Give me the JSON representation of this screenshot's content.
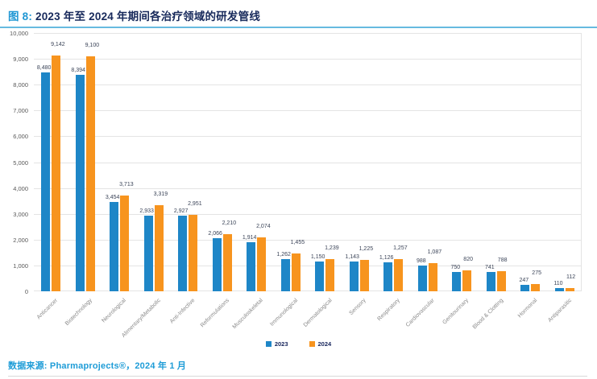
{
  "header": {
    "figure_label": "图 8:",
    "title": "2023 年至 2024 年期间各治疗领域的研发管线"
  },
  "footer": {
    "source": "数据来源: Pharmaprojects®，2024 年 1 月"
  },
  "colors": {
    "bar_2023": "#1E86C7",
    "bar_2024": "#F7941E",
    "title_navy": "#17295B",
    "accent_blue": "#2097D4",
    "grid": "#E4E4E4"
  },
  "chart_data": {
    "type": "bar",
    "title": "图 8: 2023 年至 2024 年期间各治疗领域的研发管线",
    "xlabel": "",
    "ylabel": "",
    "ylim": [
      0,
      10000
    ],
    "ytick_interval": 1000,
    "ytick_labels": [
      "0",
      "1,000",
      "2,000",
      "3,000",
      "4,000",
      "5,000",
      "6,000",
      "7,000",
      "8,000",
      "9,000",
      "10,000"
    ],
    "grid": true,
    "legend_position": "bottom",
    "categories": [
      "Anticancer",
      "Biotechnology",
      "Neurological",
      "Alimentary/Metabolic",
      "Anti-Infective",
      "Reformulations",
      "Musculoskeletal",
      "Immunological",
      "Dermatological",
      "Sensory",
      "Respiratory",
      "Cardiovascular",
      "Genitourinary",
      "Blood & Clotting",
      "Hormonal",
      "Antiparasitic"
    ],
    "series": [
      {
        "name": "2023",
        "color": "#1E86C7",
        "values": [
          8480,
          8394,
          3454,
          2933,
          2927,
          2066,
          1914,
          1262,
          1150,
          1143,
          1126,
          988,
          750,
          741,
          247,
          110
        ],
        "labels": [
          "8,480",
          "8,394",
          "3,454",
          "2,933",
          "2,927",
          "2,066",
          "1,914",
          "1,262",
          "1,150",
          "1,143",
          "1,126",
          "988",
          "750",
          "741",
          "247",
          "110"
        ]
      },
      {
        "name": "2024",
        "color": "#F7941E",
        "values": [
          9142,
          9100,
          3713,
          3319,
          2951,
          2210,
          2074,
          1455,
          1239,
          1225,
          1257,
          1087,
          820,
          788,
          275,
          112
        ],
        "labels": [
          "9,142",
          "9,100",
          "3,713",
          "3,319",
          "2,951",
          "2,210",
          "2,074",
          "1,455",
          "1,239",
          "1,225",
          "1,257",
          "1,087",
          "820",
          "788",
          "275",
          "112"
        ]
      }
    ]
  }
}
